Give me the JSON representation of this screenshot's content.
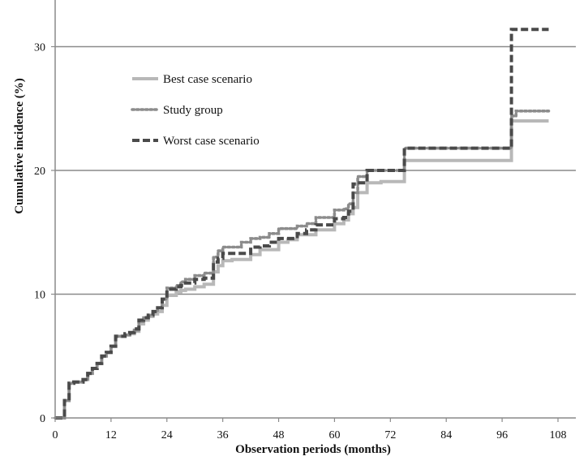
{
  "chart_data": {
    "type": "line",
    "title": "",
    "xlabel": "Observation periods (months)",
    "ylabel": "Cumulative  incidence (%)",
    "xlim": [
      0,
      110
    ],
    "ylim": [
      0,
      33
    ],
    "xticks": [
      0,
      12,
      24,
      36,
      48,
      60,
      72,
      84,
      96,
      108
    ],
    "yticks": [
      0,
      10,
      20,
      30
    ],
    "grid": "horizontal",
    "legend_position": "top-left",
    "series": [
      {
        "name": "Best case scenario",
        "style": "solid",
        "color": "#b8b8b8",
        "x": [
          0,
          2,
          3,
          4,
          6,
          7,
          8,
          9,
          10,
          11,
          12,
          13,
          15,
          16,
          17,
          18,
          19,
          20,
          21,
          22,
          23,
          24,
          26,
          27,
          28,
          30,
          32,
          34,
          35,
          36,
          38,
          40,
          42,
          44,
          46,
          48,
          50,
          52,
          54,
          56,
          58,
          60,
          62,
          63,
          64,
          65,
          67,
          70,
          75,
          80,
          90,
          98,
          99,
          100,
          106
        ],
        "y": [
          0,
          1.4,
          2.8,
          2.9,
          3.1,
          3.6,
          4.0,
          4.4,
          5.0,
          5.3,
          5.8,
          6.6,
          6.7,
          6.8,
          7.0,
          7.6,
          7.9,
          8.2,
          8.4,
          8.6,
          9.1,
          9.9,
          10.2,
          10.3,
          10.4,
          10.6,
          10.8,
          11.8,
          12.3,
          12.7,
          12.8,
          12.8,
          13.2,
          13.6,
          13.6,
          14.2,
          14.4,
          14.8,
          14.8,
          15.2,
          15.2,
          15.7,
          16.0,
          16.5,
          17.0,
          18.2,
          19.0,
          19.1,
          20.8,
          20.8,
          20.8,
          24.0,
          24.0,
          24.0,
          24.0
        ]
      },
      {
        "name": "Study group",
        "style": "dotted",
        "color": "#8c8c8c",
        "x": [
          0,
          2,
          3,
          4,
          6,
          7,
          8,
          9,
          10,
          11,
          12,
          13,
          15,
          16,
          17,
          18,
          19,
          20,
          21,
          22,
          23,
          24,
          26,
          27,
          28,
          30,
          32,
          34,
          35,
          36,
          38,
          40,
          42,
          44,
          46,
          48,
          50,
          52,
          54,
          56,
          58,
          60,
          62,
          63,
          64,
          65,
          67,
          70,
          75,
          80,
          90,
          98,
          99,
          100,
          106
        ],
        "y": [
          0,
          1.4,
          2.8,
          2.9,
          3.1,
          3.6,
          4.0,
          4.4,
          5.0,
          5.3,
          5.8,
          6.6,
          6.7,
          6.9,
          7.1,
          7.8,
          8.1,
          8.3,
          8.6,
          8.9,
          9.6,
          10.5,
          10.7,
          11.0,
          11.2,
          11.5,
          11.7,
          13.0,
          13.5,
          13.8,
          13.8,
          14.2,
          14.5,
          14.6,
          14.9,
          15.3,
          15.3,
          15.5,
          15.7,
          16.2,
          16.2,
          16.8,
          16.9,
          17.3,
          18.2,
          19.5,
          20.0,
          20.0,
          21.8,
          21.8,
          21.8,
          24.4,
          24.8,
          24.8,
          24.8
        ]
      },
      {
        "name": "Worst case scenario",
        "style": "dashed",
        "color": "#4a4a4a",
        "x": [
          0,
          2,
          3,
          4,
          6,
          7,
          8,
          9,
          10,
          11,
          12,
          13,
          15,
          16,
          17,
          18,
          19,
          20,
          21,
          22,
          23,
          24,
          26,
          27,
          28,
          30,
          32,
          34,
          35,
          36,
          38,
          40,
          42,
          44,
          46,
          48,
          50,
          52,
          54,
          56,
          58,
          60,
          62,
          63,
          64,
          65,
          67,
          70,
          75,
          80,
          90,
          98,
          99,
          100,
          106
        ],
        "y": [
          0,
          1.4,
          2.8,
          2.9,
          3.1,
          3.6,
          4.0,
          4.4,
          5.0,
          5.3,
          5.8,
          6.6,
          6.8,
          6.9,
          7.2,
          7.9,
          8.1,
          8.3,
          8.6,
          8.9,
          9.6,
          10.4,
          10.6,
          10.7,
          10.9,
          11.2,
          11.3,
          12.6,
          12.9,
          13.3,
          13.3,
          13.3,
          13.8,
          13.9,
          14.2,
          14.5,
          14.5,
          14.9,
          15.2,
          15.6,
          15.6,
          16.1,
          16.2,
          16.7,
          18.9,
          19.0,
          20.0,
          20.0,
          21.8,
          21.8,
          21.8,
          31.4,
          31.4,
          31.4,
          31.4
        ]
      }
    ]
  }
}
